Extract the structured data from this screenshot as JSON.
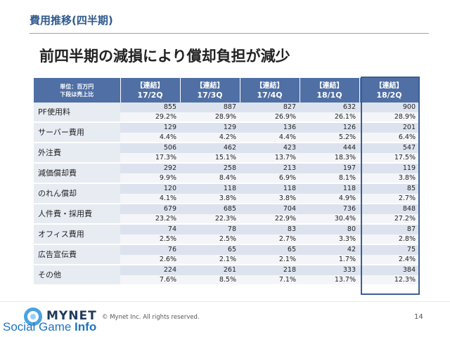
{
  "section_title": "費用推移(四半期)",
  "headline": "前四半期の減損により償却負担が減少",
  "table": {
    "unit_line1": "単位：百万円",
    "unit_line2": "下段は売上比",
    "columns": [
      {
        "tag": "【連結】",
        "period": "17/2Q"
      },
      {
        "tag": "【連結】",
        "period": "17/3Q"
      },
      {
        "tag": "【連結】",
        "period": "17/4Q"
      },
      {
        "tag": "【連結】",
        "period": "18/1Q"
      },
      {
        "tag": "【連結】",
        "period": "18/2Q"
      }
    ],
    "rows": [
      {
        "label": "PF使用料",
        "values": [
          "855",
          "887",
          "827",
          "632",
          "900"
        ],
        "ratios": [
          "29.2%",
          "28.9%",
          "26.9%",
          "26.1%",
          "28.9%"
        ]
      },
      {
        "label": "サーバー費用",
        "values": [
          "129",
          "129",
          "136",
          "126",
          "201"
        ],
        "ratios": [
          "4.4%",
          "4.2%",
          "4.4%",
          "5.2%",
          "6.4%"
        ]
      },
      {
        "label": "外注費",
        "values": [
          "506",
          "462",
          "423",
          "444",
          "547"
        ],
        "ratios": [
          "17.3%",
          "15.1%",
          "13.7%",
          "18.3%",
          "17.5%"
        ]
      },
      {
        "label": "減価償却費",
        "values": [
          "292",
          "258",
          "213",
          "197",
          "119"
        ],
        "ratios": [
          "9.9%",
          "8.4%",
          "6.9%",
          "8.1%",
          "3.8%"
        ]
      },
      {
        "label": "のれん償却",
        "values": [
          "120",
          "118",
          "118",
          "118",
          "85"
        ],
        "ratios": [
          "4.1%",
          "3.8%",
          "3.8%",
          "4.9%",
          "2.7%"
        ]
      },
      {
        "label": "人件費・採用費",
        "values": [
          "679",
          "685",
          "704",
          "736",
          "848"
        ],
        "ratios": [
          "23.2%",
          "22.3%",
          "22.9%",
          "30.4%",
          "27.2%"
        ]
      },
      {
        "label": "オフィス費用",
        "values": [
          "74",
          "78",
          "83",
          "80",
          "87"
        ],
        "ratios": [
          "2.5%",
          "2.5%",
          "2.7%",
          "3.3%",
          "2.8%"
        ]
      },
      {
        "label": "広告宣伝費",
        "values": [
          "76",
          "65",
          "65",
          "42",
          "75"
        ],
        "ratios": [
          "2.6%",
          "2.1%",
          "2.1%",
          "1.7%",
          "2.4%"
        ]
      },
      {
        "label": "その他",
        "values": [
          "224",
          "261",
          "218",
          "333",
          "384"
        ],
        "ratios": [
          "7.6%",
          "8.5%",
          "7.1%",
          "13.7%",
          "12.3%"
        ]
      }
    ]
  },
  "footer": {
    "copyright": "© Mynet Inc. All rights reserved.",
    "page_number": "14",
    "logo_text": "MYNET",
    "watermark_prefix": "Social Game ",
    "watermark_suffix": "Info"
  },
  "colors": {
    "header_bg": "#4f6fa5",
    "title_color": "#2e5a8c",
    "highlight_border": "#3a5f96"
  }
}
